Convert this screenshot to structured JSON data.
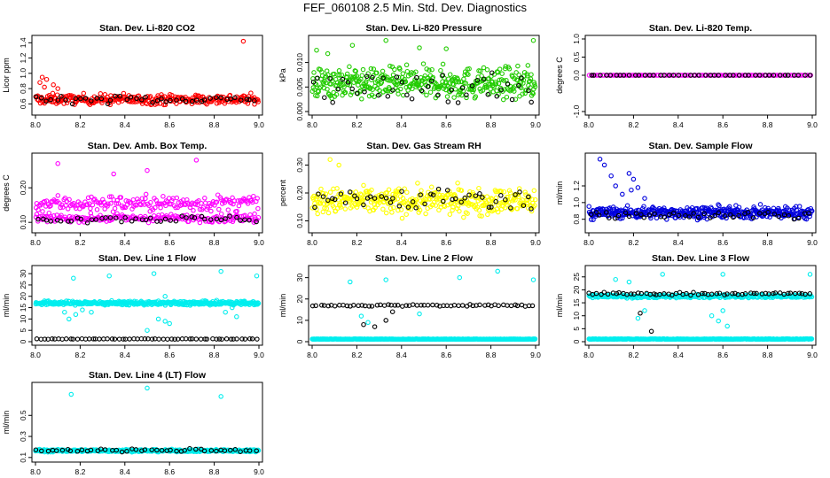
{
  "title": "FEF_060108  2.5 Min. Std. Dev. Diagnostics",
  "colors": {
    "black": "#000000"
  },
  "chart_data": [
    {
      "type": "scatter",
      "title": "Stan. Dev. Li-820 CO2",
      "ylabel": "Licor ppm",
      "xlim": [
        8.0,
        9.0
      ],
      "ylim": [
        0.5,
        1.45
      ],
      "xticks": [
        "8.0",
        "8.2",
        "8.4",
        "8.6",
        "8.8",
        "9.0"
      ],
      "yticks": [
        "0.6",
        "0.8",
        "1.0",
        "1.2",
        "1.4"
      ],
      "ytick_values": [
        0.6,
        0.8,
        1.0,
        1.2,
        1.4
      ],
      "series": [
        {
          "color": "#ff0000",
          "n": 300,
          "base": 0.66,
          "spread": 0.07,
          "jitter": 0.04,
          "outliers": [
            [
              0.02,
              0.88
            ],
            [
              0.03,
              0.95
            ],
            [
              0.05,
              0.92
            ],
            [
              0.04,
              0.82
            ],
            [
              0.08,
              0.85
            ],
            [
              0.1,
              0.8
            ],
            [
              0.93,
              1.42
            ]
          ]
        },
        {
          "color": "#000000",
          "n": 45,
          "base": 0.66,
          "spread": 0.05,
          "jitter": 0.03,
          "outliers": []
        }
      ]
    },
    {
      "type": "scatter",
      "title": "Stan. Dev. Li-820 Pressure",
      "ylabel": "kPa",
      "xlim": [
        8.0,
        9.0
      ],
      "ylim": [
        0.0,
        0.0148
      ],
      "xticks": [
        "8.0",
        "8.2",
        "8.4",
        "8.6",
        "8.8",
        "9.0"
      ],
      "yticks": [
        "0.000",
        "0.005",
        "0.010"
      ],
      "ytick_values": [
        0.0,
        0.005,
        0.01
      ],
      "series": [
        {
          "color": "#22cc00",
          "n": 400,
          "base": 0.0058,
          "spread": 0.0032,
          "jitter": 0.002,
          "outliers": [
            [
              0.02,
              0.0125
            ],
            [
              0.07,
              0.0118
            ],
            [
              0.18,
              0.0135
            ],
            [
              0.33,
              0.0145
            ],
            [
              0.48,
              0.013
            ],
            [
              0.6,
              0.0128
            ],
            [
              0.99,
              0.0145
            ]
          ]
        },
        {
          "color": "#000000",
          "n": 45,
          "base": 0.005,
          "spread": 0.0035,
          "jitter": 0.002,
          "outliers": []
        }
      ]
    },
    {
      "type": "scatter",
      "title": "Stan. Dev. Li-820 Temp.",
      "ylabel": "degrees C",
      "xlim": [
        8.0,
        9.0
      ],
      "ylim": [
        -1.0,
        1.0
      ],
      "xticks": [
        "8.0",
        "8.2",
        "8.4",
        "8.6",
        "8.8",
        "9.0"
      ],
      "yticks": [
        "-1.0",
        "0.0",
        "0.5",
        "1.0"
      ],
      "ytick_values": [
        -1.0,
        0.0,
        0.5,
        1.0
      ],
      "series": [
        {
          "color": "#ff00ff",
          "n": 120,
          "base": 0.0,
          "spread": 0.0,
          "jitter": 0.0,
          "outliers": []
        },
        {
          "color": "#000000",
          "n": 45,
          "base": 0.0,
          "spread": 0.0,
          "jitter": 0.0,
          "outliers": []
        }
      ]
    },
    {
      "type": "scatter",
      "title": "Stan. Dev. Amb. Box Temp.",
      "ylabel": "degrees C",
      "xlim": [
        8.0,
        9.0
      ],
      "ylim": [
        0.08,
        0.29
      ],
      "xticks": [
        "8.0",
        "8.2",
        "8.4",
        "8.6",
        "8.8",
        "9.0"
      ],
      "yticks": [
        "0.10",
        "0.20"
      ],
      "ytick_values": [
        0.1,
        0.2
      ],
      "series": [
        {
          "color": "#ff00ff",
          "n": 200,
          "base": 0.155,
          "spread": 0.03,
          "jitter": 0.01,
          "outliers": [
            [
              0.1,
              0.27
            ],
            [
              0.72,
              0.28
            ],
            [
              0.35,
              0.24
            ],
            [
              0.5,
              0.25
            ]
          ]
        },
        {
          "color": "#ff00ff",
          "n": 200,
          "base": 0.112,
          "spread": 0.012,
          "jitter": 0.006,
          "outliers": []
        },
        {
          "color": "#000000",
          "n": 45,
          "base": 0.11,
          "spread": 0.012,
          "jitter": 0.005,
          "outliers": []
        }
      ]
    },
    {
      "type": "scatter",
      "title": "Stan. Dev. Gas Stream RH",
      "ylabel": "percent",
      "xlim": [
        8.0,
        9.0
      ],
      "ylim": [
        0.07,
        0.33
      ],
      "xticks": [
        "8.0",
        "8.2",
        "8.4",
        "8.6",
        "8.8",
        "9.0"
      ],
      "yticks": [
        "0.10",
        "0.20",
        "0.30"
      ],
      "ytick_values": [
        0.1,
        0.2,
        0.3
      ],
      "series": [
        {
          "color": "#ffff00",
          "n": 380,
          "base": 0.17,
          "spread": 0.06,
          "jitter": 0.02,
          "outliers": [
            [
              0.08,
              0.32
            ],
            [
              0.12,
              0.3
            ]
          ]
        },
        {
          "color": "#000000",
          "n": 50,
          "base": 0.18,
          "spread": 0.05,
          "jitter": 0.02,
          "outliers": []
        }
      ]
    },
    {
      "type": "scatter",
      "title": "Stan. Dev. Sample Flow",
      "ylabel": "ml/min",
      "xlim": [
        8.0,
        9.0
      ],
      "ylim": [
        0.68,
        1.55
      ],
      "xticks": [
        "8.0",
        "8.2",
        "8.4",
        "8.6",
        "8.8",
        "9.0"
      ],
      "yticks": [
        "0.8",
        "1.0",
        "1.2"
      ],
      "ytick_values": [
        0.8,
        1.0,
        1.2
      ],
      "series": [
        {
          "color": "#0000dd",
          "n": 420,
          "base": 0.88,
          "spread": 0.08,
          "jitter": 0.04,
          "outliers": [
            [
              0.05,
              1.52
            ],
            [
              0.07,
              1.45
            ],
            [
              0.1,
              1.32
            ],
            [
              0.18,
              1.35
            ],
            [
              0.2,
              1.28
            ],
            [
              0.12,
              1.2
            ],
            [
              0.22,
              1.18
            ],
            [
              0.15,
              1.1
            ],
            [
              0.25,
              1.05
            ],
            [
              0.19,
              1.15
            ]
          ]
        },
        {
          "color": "#000000",
          "n": 45,
          "base": 0.85,
          "spread": 0.05,
          "jitter": 0.03,
          "outliers": []
        }
      ]
    },
    {
      "type": "scatter",
      "title": "Stan. Dev. Line 1 Flow",
      "ylabel": "ml/min",
      "xlim": [
        8.0,
        9.0
      ],
      "ylim": [
        0,
        32
      ],
      "xticks": [
        "8.0",
        "8.2",
        "8.4",
        "8.6",
        "8.8",
        "9.0"
      ],
      "yticks": [
        "0",
        "5",
        "10",
        "15",
        "20",
        "25",
        "30"
      ],
      "ytick_values": [
        0,
        5,
        10,
        15,
        20,
        25,
        30
      ],
      "series": [
        {
          "color": "#00eeee",
          "n": 400,
          "base": 17,
          "spread": 0.8,
          "jitter": 0.6,
          "outliers": [
            [
              0.17,
              28
            ],
            [
              0.33,
              29
            ],
            [
              0.53,
              30
            ],
            [
              0.83,
              31
            ],
            [
              0.99,
              29
            ],
            [
              0.18,
              12
            ],
            [
              0.21,
              14
            ],
            [
              0.25,
              13
            ],
            [
              0.55,
              10
            ],
            [
              0.58,
              9
            ],
            [
              0.6,
              8
            ],
            [
              0.85,
              13
            ],
            [
              0.88,
              15
            ],
            [
              0.9,
              11
            ],
            [
              0.13,
              13
            ],
            [
              0.15,
              10
            ],
            [
              0.58,
              20
            ],
            [
              0.5,
              5
            ]
          ]
        },
        {
          "color": "#000000",
          "n": 60,
          "base": 1.2,
          "spread": 0.0,
          "jitter": 0.1,
          "outliers": []
        }
      ]
    },
    {
      "type": "scatter",
      "title": "Stan. Dev. Line 2 Flow",
      "ylabel": "ml/min",
      "xlim": [
        8.0,
        9.0
      ],
      "ylim": [
        0,
        34
      ],
      "xticks": [
        "8.0",
        "8.2",
        "8.4",
        "8.6",
        "8.8",
        "9.0"
      ],
      "yticks": [
        "0",
        "10",
        "20",
        "30"
      ],
      "ytick_values": [
        0,
        10,
        20,
        30
      ],
      "series": [
        {
          "color": "#00eeee",
          "n": 400,
          "base": 1.2,
          "spread": 0.0,
          "jitter": 0.1,
          "outliers": [
            [
              0.17,
              28
            ],
            [
              0.33,
              29
            ],
            [
              0.66,
              30
            ],
            [
              0.83,
              33
            ],
            [
              0.99,
              29
            ],
            [
              0.22,
              12
            ],
            [
              0.25,
              9
            ],
            [
              0.48,
              13
            ]
          ]
        },
        {
          "color": "#000000",
          "n": 60,
          "base": 17,
          "spread": 0.5,
          "jitter": 0.3,
          "outliers": [
            [
              0.23,
              8
            ],
            [
              0.28,
              7
            ],
            [
              0.33,
              10
            ],
            [
              0.36,
              14
            ]
          ]
        }
      ]
    },
    {
      "type": "scatter",
      "title": "Stan. Dev. Line 3 Flow",
      "ylabel": "ml/min",
      "xlim": [
        8.0,
        9.0
      ],
      "ylim": [
        0,
        28
      ],
      "xticks": [
        "8.0",
        "8.2",
        "8.4",
        "8.6",
        "8.8",
        "9.0"
      ],
      "yticks": [
        "0",
        "5",
        "10",
        "15",
        "20",
        "25"
      ],
      "ytick_values": [
        0,
        5,
        10,
        15,
        20,
        25
      ],
      "series": [
        {
          "color": "#00eeee",
          "n": 380,
          "base": 1.0,
          "spread": 0.0,
          "jitter": 0.1,
          "outliers": [
            [
              0.12,
              24
            ],
            [
              0.18,
              23
            ],
            [
              0.33,
              26
            ],
            [
              0.6,
              26
            ],
            [
              0.99,
              26
            ],
            [
              0.55,
              10
            ],
            [
              0.58,
              8
            ],
            [
              0.6,
              12
            ],
            [
              0.62,
              6
            ],
            [
              0.22,
              9
            ],
            [
              0.25,
              12
            ]
          ]
        },
        {
          "color": "#00eeee",
          "n": 300,
          "base": 17.5,
          "spread": 0.5,
          "jitter": 0.5,
          "outliers": []
        },
        {
          "color": "#000000",
          "n": 60,
          "base": 18.5,
          "spread": 0.6,
          "jitter": 0.3,
          "outliers": [
            [
              0.28,
              4
            ],
            [
              0.23,
              11
            ]
          ]
        }
      ]
    },
    {
      "type": "scatter",
      "title": "Stan. Dev. Line 4 (LT) Flow",
      "ylabel": "ml/min",
      "xlim": [
        8.0,
        9.0
      ],
      "ylim": [
        0.09,
        0.78
      ],
      "xticks": [
        "8.0",
        "8.2",
        "8.4",
        "8.6",
        "8.8",
        "9.0"
      ],
      "yticks": [
        "0.1",
        "0.3",
        "0.5"
      ],
      "ytick_values": [
        0.1,
        0.3,
        0.5
      ],
      "series": [
        {
          "color": "#00eeee",
          "n": 400,
          "base": 0.165,
          "spread": 0.01,
          "jitter": 0.008,
          "outliers": [
            [
              0.16,
              0.7
            ],
            [
              0.5,
              0.76
            ],
            [
              0.83,
              0.68
            ]
          ]
        },
        {
          "color": "#000000",
          "n": 45,
          "base": 0.17,
          "spread": 0.015,
          "jitter": 0.01,
          "outliers": []
        }
      ]
    }
  ]
}
